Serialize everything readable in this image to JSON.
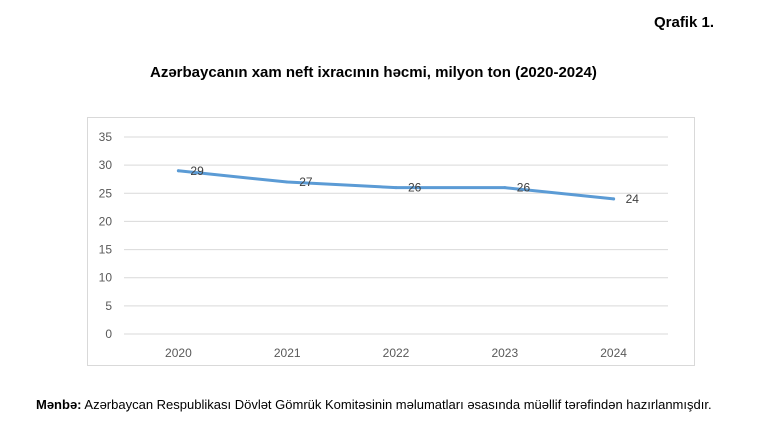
{
  "header": {
    "figure_label": "Qrafik 1."
  },
  "source": {
    "label": "Mənbə:",
    "text": " Azərbaycan Respublikası Dövlət Gömrük Komitəsinin məlumatları əsasında müəllif tərəfindən hazırlanmışdır."
  },
  "colors": {
    "line": "#5b9bd5",
    "grid": "#d9d9d9",
    "axis_text": "#595959",
    "label_text": "#404040"
  },
  "chart_data": {
    "type": "line",
    "title": "Azərbaycanın xam neft ixracının həcmi, milyon ton (2020-2024)",
    "xlabel": "",
    "ylabel": "",
    "categories": [
      "2020",
      "2021",
      "2022",
      "2023",
      "2024"
    ],
    "series": [
      {
        "values": [
          29,
          27,
          26,
          26,
          24
        ]
      }
    ],
    "data_labels": [
      "29",
      "27",
      "26",
      "26",
      "24"
    ],
    "ylim": [
      0,
      35
    ],
    "yticks": [
      0,
      5,
      10,
      15,
      20,
      25,
      30,
      35
    ],
    "grid": true,
    "legend": "none"
  }
}
